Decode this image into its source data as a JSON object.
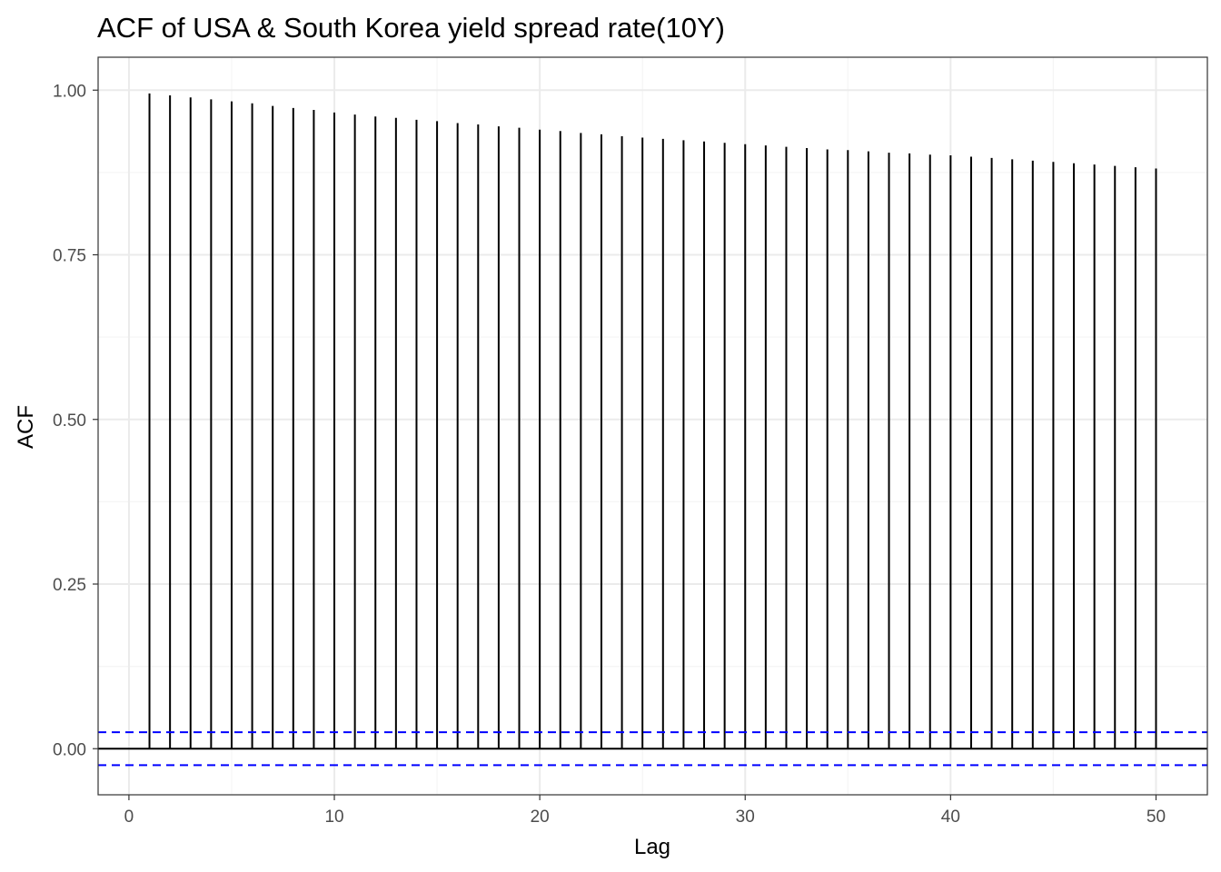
{
  "chart_data": {
    "type": "bar",
    "subtype": "acf-stem",
    "title": "ACF of USA & South Korea yield spread rate(10Y)",
    "xlabel": "Lag",
    "ylabel": "ACF",
    "xlim": [
      -1.5,
      52.5
    ],
    "ylim": [
      -0.07,
      1.05
    ],
    "grid": true,
    "x_ticks": [
      0,
      10,
      20,
      30,
      40,
      50
    ],
    "x_tick_labels": [
      "0",
      "10",
      "20",
      "30",
      "40",
      "50"
    ],
    "y_ticks": [
      0,
      0.25,
      0.5,
      0.75,
      1.0
    ],
    "y_tick_labels": [
      "0.00",
      "0.25",
      "0.50",
      "0.75",
      "1.00"
    ],
    "confidence_bounds": [
      0.025,
      -0.025
    ],
    "lags": [
      1,
      2,
      3,
      4,
      5,
      6,
      7,
      8,
      9,
      10,
      11,
      12,
      13,
      14,
      15,
      16,
      17,
      18,
      19,
      20,
      21,
      22,
      23,
      24,
      25,
      26,
      27,
      28,
      29,
      30,
      31,
      32,
      33,
      34,
      35,
      36,
      37,
      38,
      39,
      40,
      41,
      42,
      43,
      44,
      45,
      46,
      47,
      48,
      49,
      50
    ],
    "values": [
      0.995,
      0.992,
      0.989,
      0.986,
      0.983,
      0.98,
      0.976,
      0.973,
      0.97,
      0.966,
      0.963,
      0.96,
      0.958,
      0.955,
      0.953,
      0.95,
      0.948,
      0.945,
      0.943,
      0.94,
      0.938,
      0.935,
      0.933,
      0.93,
      0.928,
      0.926,
      0.924,
      0.922,
      0.92,
      0.918,
      0.916,
      0.914,
      0.912,
      0.91,
      0.909,
      0.907,
      0.905,
      0.904,
      0.902,
      0.901,
      0.899,
      0.897,
      0.895,
      0.893,
      0.891,
      0.889,
      0.887,
      0.885,
      0.883,
      0.881
    ],
    "colors": {
      "stem": "#000000",
      "zero_line": "#000000",
      "bounds": "#0000ff",
      "grid_major": "#ebebeb",
      "grid_minor": "#f5f5f5",
      "panel_border": "#333333"
    }
  }
}
